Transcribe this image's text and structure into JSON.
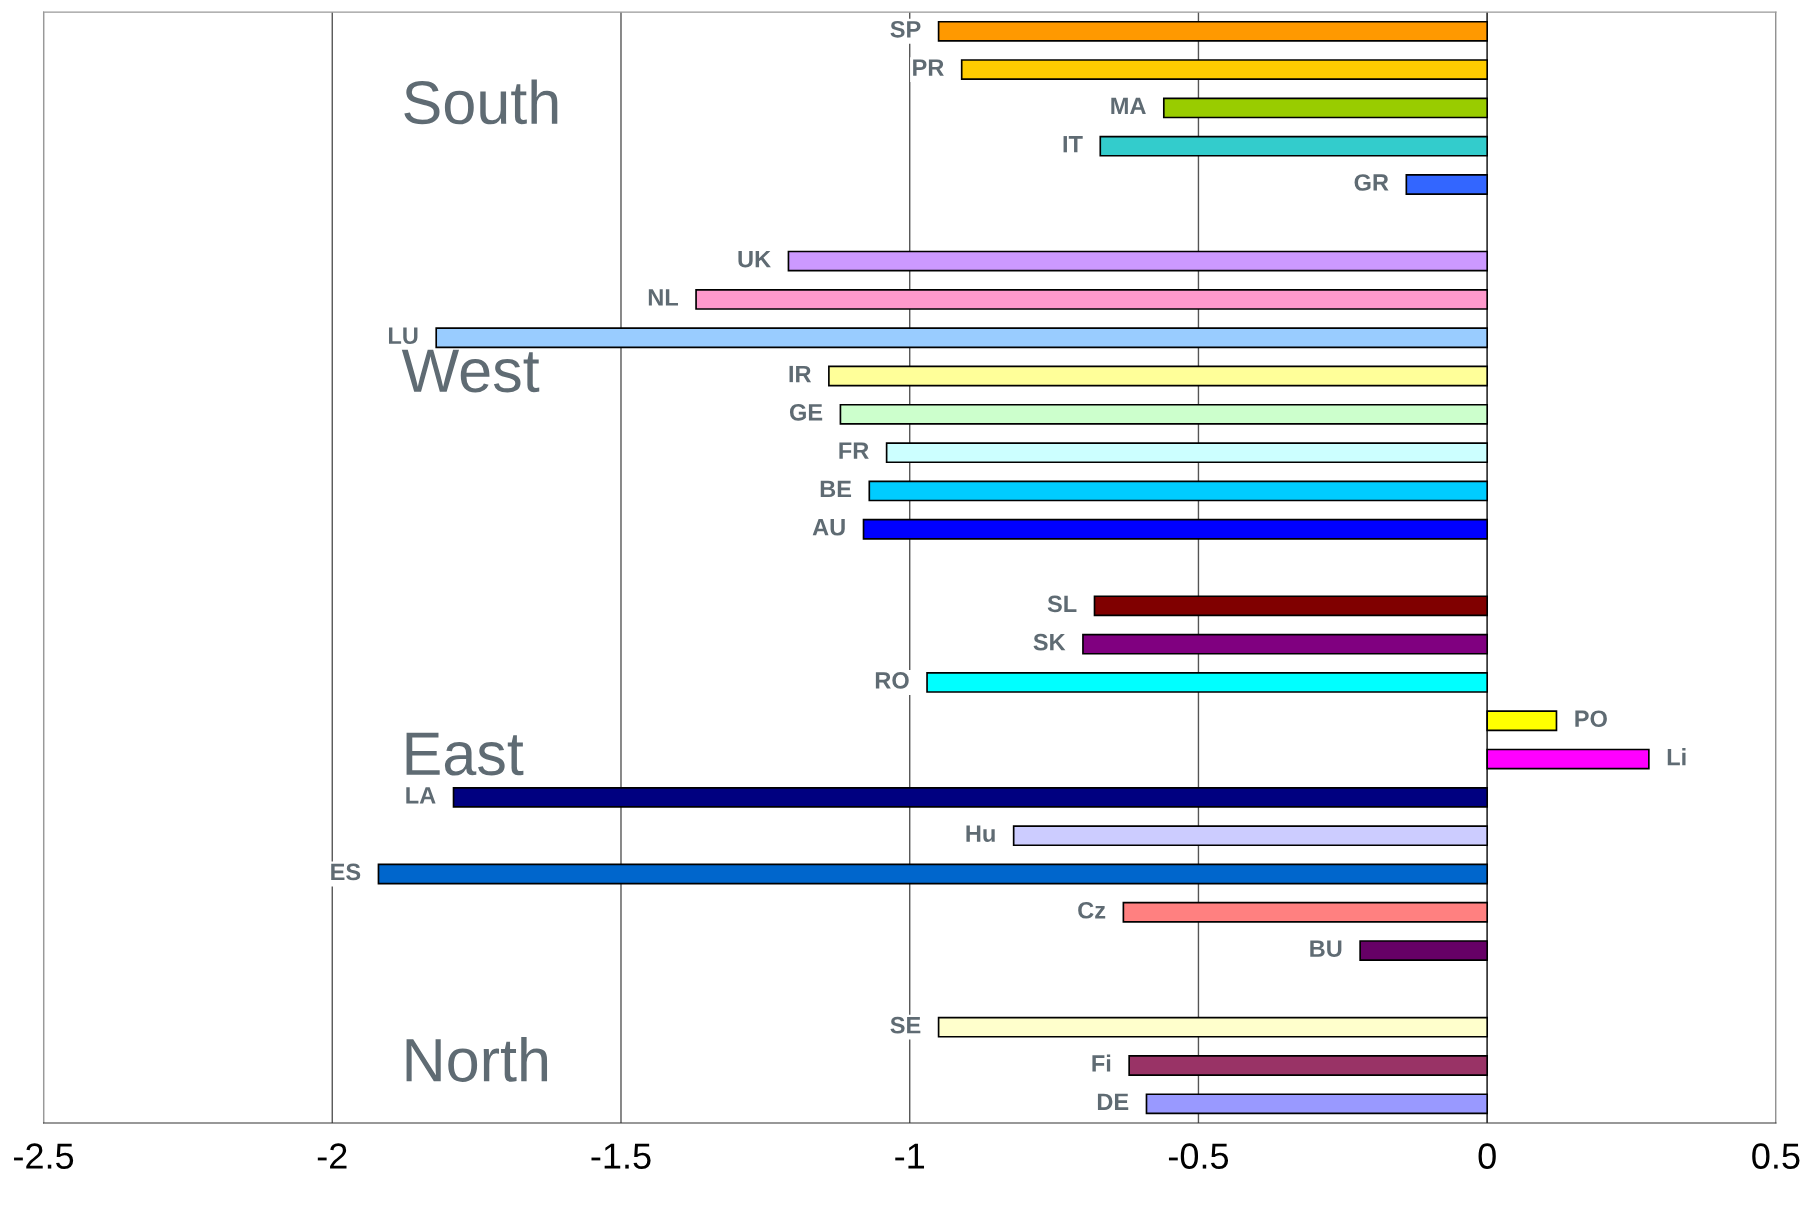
{
  "chart_data": {
    "type": "bar",
    "orientation": "horizontal",
    "categories": [
      "SP",
      "PR",
      "MA",
      "IT",
      "GR",
      null,
      "UK",
      "NL",
      "LU",
      "IR",
      "GE",
      "FR",
      "BE",
      "AU",
      null,
      "SL",
      "SK",
      "RO",
      "PO",
      "Li",
      "LA",
      "Hu",
      "ES",
      "Cz",
      "BU",
      null,
      "SE",
      "Fi",
      "DE"
    ],
    "values": [
      -0.95,
      -0.91,
      -0.56,
      -0.67,
      -0.14,
      null,
      -1.21,
      -1.37,
      -1.82,
      -1.14,
      -1.12,
      -1.04,
      -1.07,
      -1.08,
      null,
      -0.68,
      -0.7,
      -0.97,
      0.12,
      0.28,
      -1.79,
      -0.82,
      -1.92,
      -0.63,
      -0.22,
      null,
      -0.95,
      -0.62,
      -0.59
    ],
    "colors": [
      "#ff9900",
      "#ffcc00",
      "#99cc00",
      "#33cccc",
      "#3366ff",
      null,
      "#cc99ff",
      "#ff99cc",
      "#99ccff",
      "#ffff99",
      "#ccffcc",
      "#ccffff",
      "#00ccff",
      "#0000ff",
      null,
      "#800000",
      "#800080",
      "#00ffff",
      "#ffff00",
      "#ff00ff",
      "#000080",
      "#ccccff",
      "#0066cc",
      "#ff8080",
      "#660066",
      null,
      "#ffffcc",
      "#993366",
      "#9999ff"
    ],
    "annotations": [
      "South",
      "West",
      "East",
      "North"
    ],
    "xlim": [
      -2.5,
      0.5
    ],
    "xticks": [
      -2.5,
      -2,
      -1.5,
      -1,
      -0.5,
      0,
      0.5
    ],
    "grid": "x",
    "tick_labels": "x"
  }
}
